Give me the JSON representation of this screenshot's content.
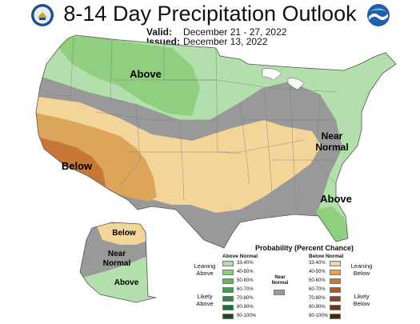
{
  "header": {
    "title": "8-14 Day Precipitation Outlook",
    "valid_label": "Valid:",
    "valid_value": "December 21 - 27, 2022",
    "issued_label": "Issued:",
    "issued_value": "December 13, 2022"
  },
  "logos": {
    "left": "commerce-seal-icon",
    "right": "noaa-logo-icon"
  },
  "map_labels": {
    "above_north": "Above",
    "below_southwest": "Below",
    "near_normal_east": "Near\nNormal",
    "above_florida": "Above",
    "alaska_below": "Below",
    "alaska_near_normal": "Near\nNormal",
    "alaska_above": "Above"
  },
  "legend": {
    "title": "Probability (Percent Chance)",
    "above_header": "Above Normal",
    "below_header": "Below Normal",
    "near_normal": "Near Normal",
    "leaning_above": "Leaning\nAbove",
    "likely_above": "Likely\nAbove",
    "leaning_below": "Leaning\nBelow",
    "likely_below": "Likely\nBelow",
    "near_color": "#999999",
    "above": [
      {
        "range": "33-40%",
        "color": "#b2dfab"
      },
      {
        "range": "40-50%",
        "color": "#8fcf7f"
      },
      {
        "range": "50-60%",
        "color": "#5cb85c"
      },
      {
        "range": "60-70%",
        "color": "#3f9f4d"
      },
      {
        "range": "70-80%",
        "color": "#2c8a3e"
      },
      {
        "range": "80-90%",
        "color": "#1f6f30"
      },
      {
        "range": "90-100%",
        "color": "#144d20"
      }
    ],
    "below": [
      {
        "range": "33-40%",
        "color": "#f3d59a"
      },
      {
        "range": "40-50%",
        "color": "#dca55a"
      },
      {
        "range": "50-60%",
        "color": "#c77736"
      },
      {
        "range": "60-70%",
        "color": "#a85a2a"
      },
      {
        "range": "70-80%",
        "color": "#8a441f"
      },
      {
        "range": "80-90%",
        "color": "#6e3418"
      },
      {
        "range": "90-100%",
        "color": "#4f2410"
      }
    ]
  },
  "map_colors": {
    "above_light": "#b2dfab",
    "above_mid": "#8fcf7f",
    "near_normal": "#999999",
    "below_light": "#f3d59a",
    "below_mid": "#dca55a",
    "below_strong": "#c77736"
  }
}
